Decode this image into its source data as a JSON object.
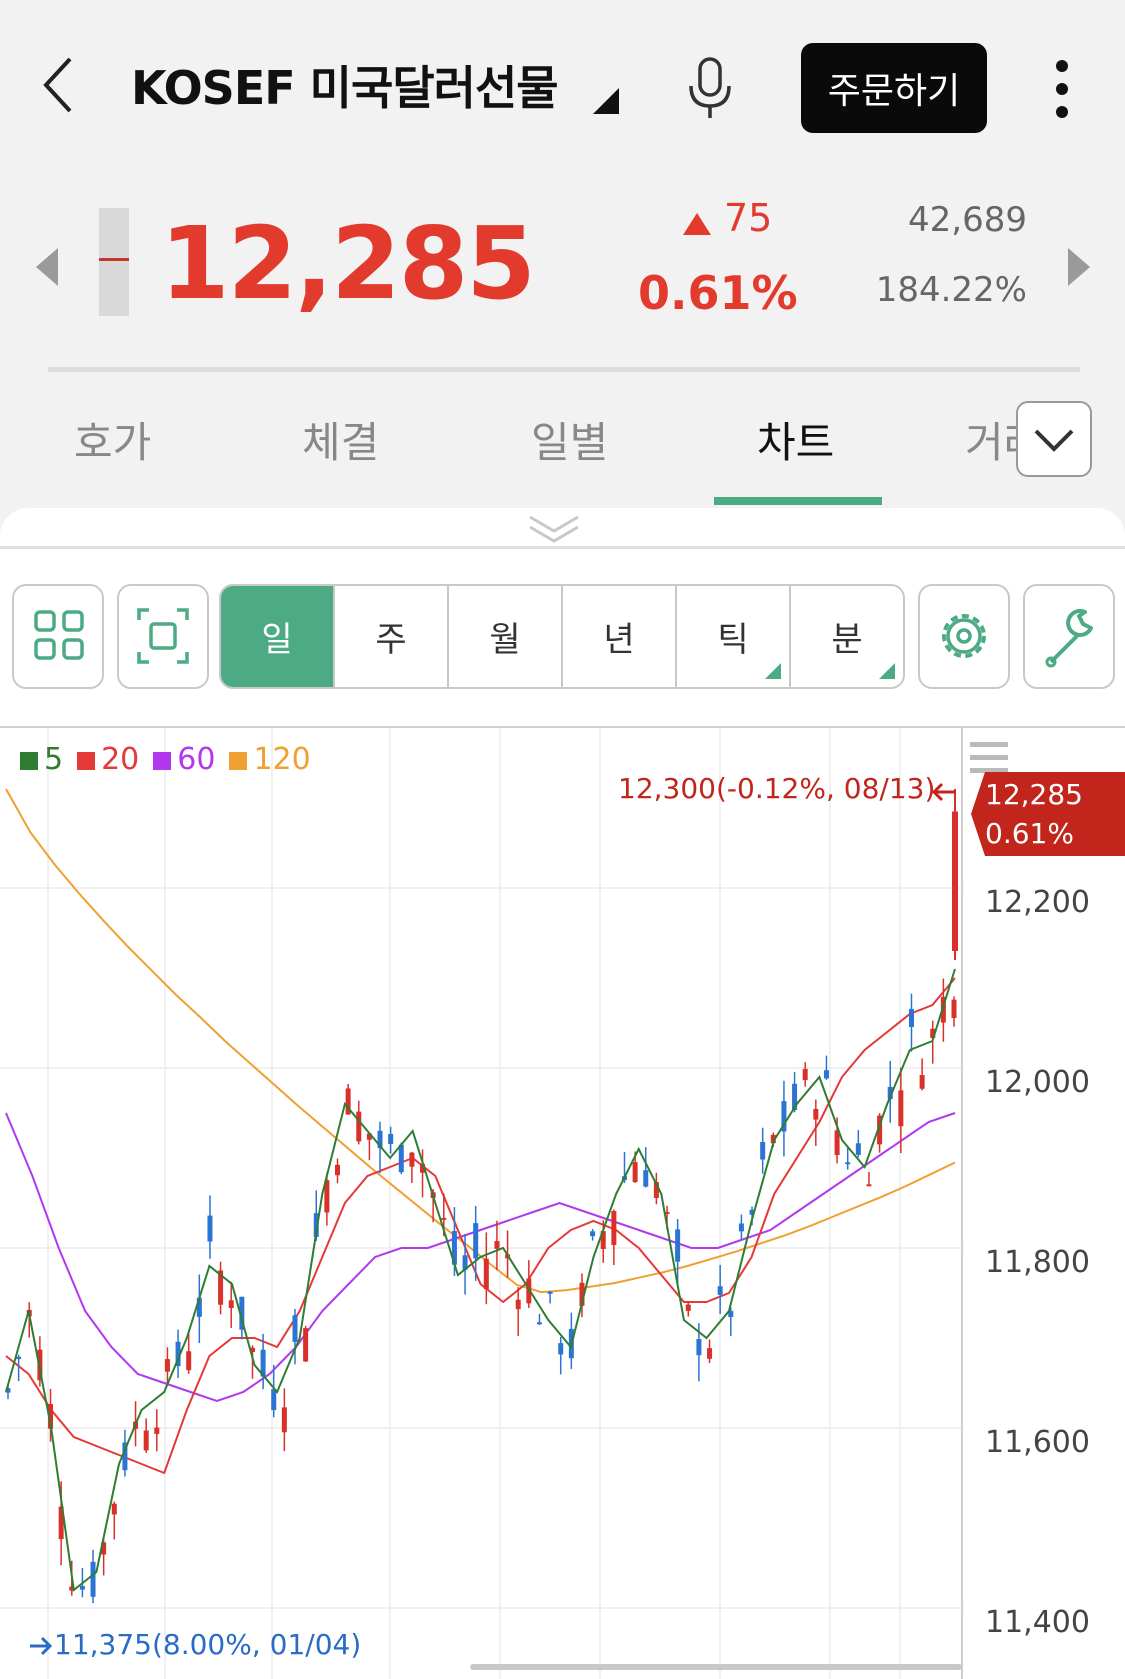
{
  "header": {
    "title": "KOSEF 미국달러선물",
    "order_label": "주문하기"
  },
  "quote": {
    "price": "12,285",
    "change": "75",
    "change_pct": "0.61%",
    "volume": "42,689",
    "volume_ratio": "184.22%"
  },
  "tabs": [
    {
      "label": "호가"
    },
    {
      "label": "체결"
    },
    {
      "label": "일별"
    },
    {
      "label": "차트"
    },
    {
      "label": "거래"
    }
  ],
  "active_tab": "차트",
  "periods": [
    {
      "label": "일"
    },
    {
      "label": "주"
    },
    {
      "label": "월"
    },
    {
      "label": "년"
    },
    {
      "label": "틱"
    },
    {
      "label": "분"
    }
  ],
  "active_period": "일",
  "legend": [
    {
      "label": "5",
      "color": "#2e7d32"
    },
    {
      "label": "20",
      "color": "#e53935"
    },
    {
      "label": "60",
      "color": "#b238f0"
    },
    {
      "label": "120",
      "color": "#f0a030"
    }
  ],
  "chart_data": {
    "type": "candlestick",
    "y_ticks": [
      "12,200",
      "12,000",
      "11,800",
      "11,600",
      "11,400"
    ],
    "ylim": [
      11360,
      12380
    ],
    "current_price_label": "12,285",
    "current_pct_label": "0.61%",
    "high_annotation": "12,300(-0.12%, 08/13)",
    "low_annotation": "11,375(8.00%, 01/04)",
    "ma5": [
      11640,
      11730,
      11600,
      11420,
      11440,
      11560,
      11620,
      11640,
      11700,
      11780,
      11760,
      11670,
      11640,
      11700,
      11860,
      11960,
      11930,
      11900,
      11930,
      11850,
      11770,
      11790,
      11800,
      11760,
      11720,
      11690,
      11790,
      11860,
      11910,
      11860,
      11720,
      11700,
      11730,
      11830,
      11920,
      11960,
      11990,
      11920,
      11890,
      11960,
      12020,
      12030,
      12110
    ],
    "ma20": [
      11680,
      11660,
      11620,
      11590,
      11580,
      11570,
      11560,
      11550,
      11620,
      11680,
      11700,
      11700,
      11690,
      11730,
      11790,
      11850,
      11880,
      11890,
      11900,
      11880,
      11820,
      11760,
      11740,
      11760,
      11800,
      11820,
      11830,
      11820,
      11800,
      11770,
      11740,
      11740,
      11750,
      11790,
      11860,
      11900,
      11940,
      11990,
      12020,
      12040,
      12060,
      12070,
      12100
    ],
    "ma60": [
      11950,
      11880,
      11800,
      11730,
      11690,
      11660,
      11650,
      11640,
      11630,
      11640,
      11660,
      11690,
      11730,
      11760,
      11790,
      11800,
      11800,
      11810,
      11820,
      11830,
      11840,
      11850,
      11840,
      11830,
      11820,
      11810,
      11800,
      11800,
      11810,
      11820,
      11840,
      11860,
      11880,
      11900,
      11920,
      11940,
      11950
    ]
  }
}
